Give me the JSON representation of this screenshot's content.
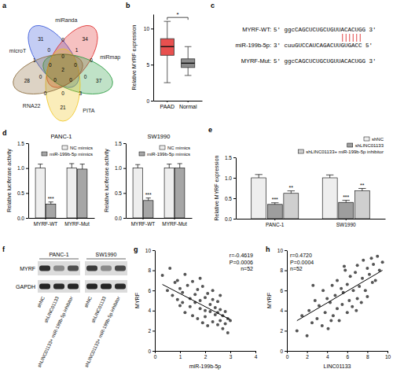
{
  "chart_data": [
    {
      "panel": "a",
      "type": "venn",
      "sets": [
        "microT",
        "miRanda",
        "miRmap",
        "PITA",
        "RNA22"
      ],
      "colors": [
        "#3b5bdb",
        "#e03131",
        "#2f9e44",
        "#f0c419",
        "#8d6e3f"
      ],
      "regions": [
        31,
        34,
        37,
        21,
        28,
        0,
        0,
        1,
        0,
        0,
        3,
        0,
        0,
        0,
        1,
        0,
        0,
        0,
        0,
        0,
        2
      ]
    },
    {
      "panel": "b",
      "type": "box",
      "categories": [
        "PAAD",
        "Normal"
      ],
      "colors": [
        "#e8504f",
        "#8c8c8c"
      ],
      "boxes": [
        {
          "min": 2.5,
          "q1": 6.3,
          "median": 7.5,
          "q3": 8.6,
          "max": 11
        },
        {
          "min": 3.5,
          "q1": 4.6,
          "median": 5.2,
          "q3": 5.8,
          "max": 7.5
        }
      ],
      "ylabel": "Relative MYRF expression",
      "ylim": [
        0,
        12
      ],
      "yticks": [
        0,
        5,
        10
      ],
      "significance": "*"
    },
    {
      "panel": "d",
      "type": "bar",
      "title": "PANC-1",
      "categories": [
        "MYRF-WT",
        "MYRF-Mut"
      ],
      "series": [
        {
          "name": "NC mimics",
          "color": "#eeeeee",
          "values": [
            1,
            1
          ],
          "errors": [
            0.08,
            0.09
          ]
        },
        {
          "name": "miR-199b-5p mimics",
          "color": "#a6a6a6",
          "values": [
            0.28,
            0.98
          ],
          "errors": [
            0.04,
            0.1
          ],
          "significance": [
            "***",
            null
          ]
        }
      ],
      "ylabel": "Relative luciferase activity",
      "ylim": [
        0,
        1.5
      ],
      "yticks": [
        {
          "value": 0,
          "label": "0.0"
        },
        {
          "value": 0.5,
          "label": "0.5"
        },
        {
          "value": 1,
          "label": "1.0"
        },
        {
          "value": 1.5,
          "label": "1.5"
        }
      ],
      "legend": "upper right"
    },
    {
      "type": "bar",
      "title": "SW1990",
      "categories": [
        "MYRF-WT",
        "MYRF-Mut"
      ],
      "series": [
        {
          "name": "NC mimics",
          "color": "#eeeeee",
          "values": [
            1,
            1
          ],
          "errors": [
            0.07,
            0.08
          ]
        },
        {
          "name": "miR-199b-5p mimics",
          "color": "#a6a6a6",
          "values": [
            0.35,
            1
          ],
          "errors": [
            0.05,
            0.09
          ],
          "significance": [
            "***",
            null
          ]
        }
      ],
      "ylabel": "Relative luciferase activity",
      "ylim": [
        0,
        1.5
      ],
      "yticks": [
        {
          "value": 0,
          "label": "0.0"
        },
        {
          "value": 0.5,
          "label": "0.5"
        },
        {
          "value": 1,
          "label": "1.0"
        },
        {
          "value": 1.5,
          "label": "1.5"
        }
      ],
      "legend": "upper right"
    },
    {
      "panel": "e",
      "type": "bar",
      "categories": [
        "PANC-1",
        "SW1990"
      ],
      "series": [
        {
          "name": "shNC",
          "color": "#eeeeee",
          "values": [
            1,
            1
          ],
          "errors": [
            0.08,
            0.07
          ]
        },
        {
          "name": "shLINC01133",
          "color": "#9e9e9e",
          "values": [
            0.35,
            0.4
          ],
          "errors": [
            0.04,
            0.05
          ],
          "significance": [
            "***",
            "***"
          ]
        },
        {
          "name": "shLINC01133+ miR-199b-5p inhibitor",
          "color": "#cfcfcf",
          "values": [
            0.62,
            0.68
          ],
          "errors": [
            0.06,
            0.06
          ],
          "significance": [
            "**",
            "**"
          ]
        }
      ],
      "ylabel": "Relative MYRF expression",
      "ylim": [
        0,
        1.5
      ],
      "yticks": [
        {
          "value": 0,
          "label": "0.0"
        },
        {
          "value": 0.5,
          "label": "0.5"
        },
        {
          "value": 1,
          "label": "1.0"
        },
        {
          "value": 1.5,
          "label": "1.5"
        }
      ],
      "legend": "top"
    },
    {
      "panel": "g",
      "type": "scatter",
      "color": "#555555",
      "x": [
        0.3,
        0.5,
        0.6,
        0.7,
        0.8,
        0.9,
        1.0,
        1.0,
        1.1,
        1.2,
        1.2,
        1.3,
        1.4,
        1.4,
        1.5,
        1.5,
        1.6,
        1.6,
        1.7,
        1.7,
        1.8,
        1.8,
        1.9,
        1.9,
        2.0,
        2.0,
        2.0,
        2.1,
        2.1,
        2.2,
        2.2,
        2.3,
        2.3,
        2.4,
        2.4,
        2.5,
        2.5,
        2.5,
        2.6,
        2.6,
        2.7,
        2.7,
        2.8,
        2.8,
        2.9,
        2.9,
        3.0,
        1.1,
        0.9,
        1.8,
        2.3,
        2.6
      ],
      "values": [
        7.5,
        6.0,
        8.2,
        5.5,
        6.8,
        7.0,
        4.5,
        6.2,
        5.8,
        7.6,
        3.8,
        6.5,
        5.2,
        4.4,
        6.9,
        3.5,
        5.6,
        4.8,
        6.1,
        3.2,
        5.0,
        4.2,
        6.4,
        2.8,
        5.3,
        4.0,
        3.4,
        5.7,
        2.5,
        4.6,
        3.9,
        5.1,
        2.9,
        4.3,
        3.6,
        4.9,
        2.6,
        3.8,
        4.1,
        3.0,
        3.5,
        2.2,
        3.9,
        2.7,
        3.2,
        1.8,
        3.0,
        4.8,
        5.1,
        7.2,
        6.0,
        5.5
      ],
      "fit": {
        "x": [
          0.3,
          3.0
        ],
        "y": [
          6.6,
          3.1
        ]
      },
      "stats": [
        "r=-0.4619",
        "P=0.0006",
        "n=52"
      ],
      "xlabel": "miR-199b-5p",
      "ylabel": "MYRF",
      "xlim": [
        0,
        4
      ],
      "xticks": [
        0,
        1,
        2,
        3,
        4
      ],
      "ylim": [
        0,
        10
      ],
      "yticks": [
        0,
        2,
        4,
        6,
        8,
        10
      ]
    },
    {
      "panel": "h",
      "type": "scatter",
      "color": "#555555",
      "x": [
        1.0,
        1.5,
        2.0,
        2.2,
        2.5,
        2.8,
        3.0,
        3.2,
        3.5,
        3.6,
        3.8,
        4.0,
        4.1,
        4.3,
        4.5,
        4.6,
        4.8,
        5.0,
        5.0,
        5.2,
        5.4,
        5.5,
        5.6,
        5.8,
        6.0,
        6.0,
        6.2,
        6.3,
        6.5,
        6.6,
        6.8,
        7.0,
        7.0,
        7.2,
        7.4,
        7.5,
        7.6,
        7.8,
        8.0,
        8.0,
        8.2,
        8.4,
        8.5,
        8.6,
        8.8,
        9.0,
        9.2,
        9.5,
        2.6,
        4.4,
        5.7,
        6.9
      ],
      "values": [
        2.0,
        3.5,
        1.5,
        4.0,
        2.8,
        5.0,
        3.2,
        4.5,
        2.5,
        6.0,
        3.8,
        5.2,
        2.2,
        4.8,
        6.5,
        3.5,
        5.5,
        4.2,
        7.0,
        3.0,
        6.2,
        4.6,
        5.8,
        8.0,
        3.8,
        6.6,
        5.0,
        7.4,
        4.4,
        6.0,
        7.8,
        5.2,
        8.5,
        6.4,
        4.8,
        7.2,
        9.0,
        6.0,
        8.2,
        5.4,
        7.6,
        9.2,
        6.8,
        8.6,
        7.0,
        9.4,
        8.0,
        8.8,
        6.5,
        3.0,
        8.4,
        4.0
      ],
      "fit": {
        "x": [
          1.0,
          9.5
        ],
        "y": [
          3.0,
          8.0
        ]
      },
      "stats": [
        "r=0.4720",
        "P=0.0004",
        "n=52"
      ],
      "xlabel": "LINC01133",
      "ylabel": "MYRF",
      "xlim": [
        0,
        10
      ],
      "xticks": [
        0,
        2,
        4,
        6,
        8,
        10
      ],
      "ylim": [
        0,
        10
      ],
      "yticks": [
        0,
        2,
        4,
        6,
        8,
        10
      ]
    }
  ],
  "sequence": {
    "panel": "c",
    "labels": [
      "MYRF-WT:",
      "miR-199b-5p:",
      "MYRF-Mut:"
    ],
    "sequences": [
      "5' ggcCAGCUCUGCUGUUACACUGG 3'",
      "3' cuuGUCCAUCAGACUUGUGACC 5'",
      "5' ggcCAGCUCUGCUGUUACACUGG 3'"
    ]
  },
  "blot": {
    "panel": "f",
    "cell_lines": [
      "PANC-1",
      "SW1990"
    ],
    "rows": [
      "MYRF",
      "GAPDH"
    ],
    "lanes": [
      "shNC",
      "shLINC01133",
      "shLINC01133+ miR-199b-5p inhibitor"
    ],
    "intensity": [
      [
        0.85,
        0.4,
        0.7,
        0.8,
        0.4,
        0.72
      ],
      [
        0.9,
        0.88,
        0.9,
        0.9,
        0.9,
        0.88
      ]
    ]
  }
}
